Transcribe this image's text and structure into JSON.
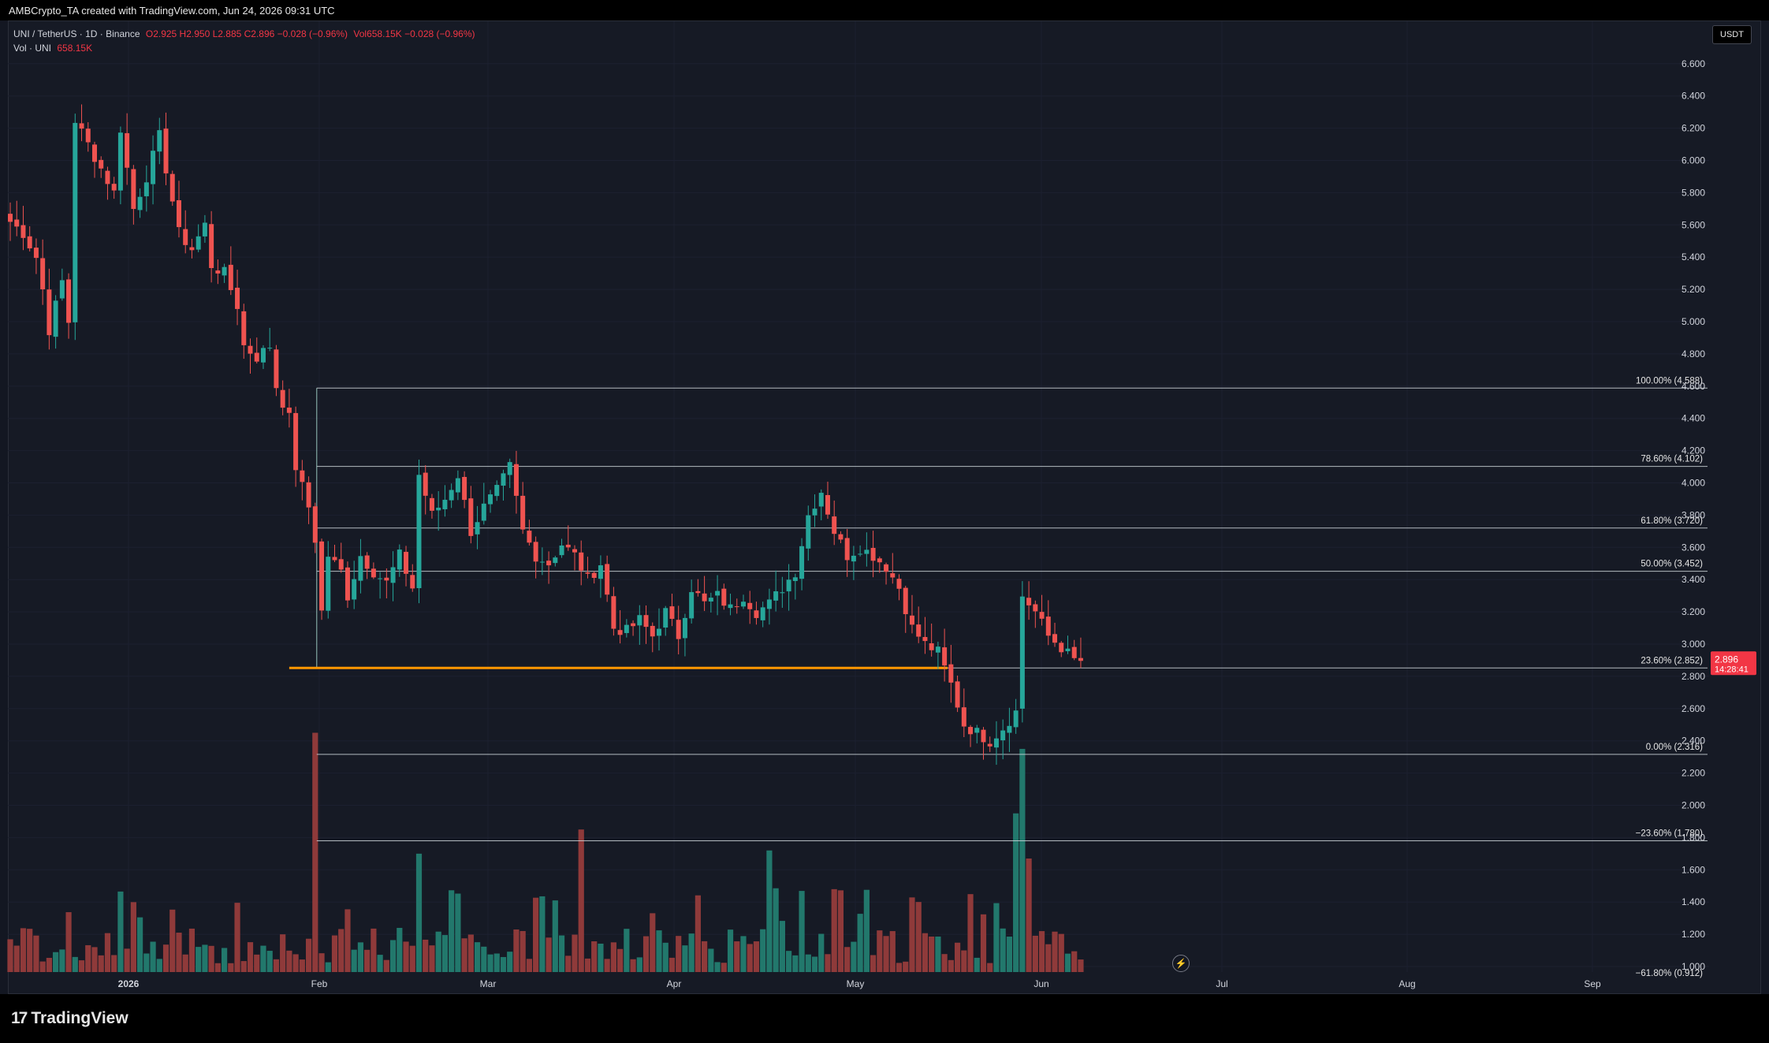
{
  "header": {
    "credit": "AMBCrypto_TA created with TradingView.com, Jun 24, 2026 09:31 UTC"
  },
  "legend": {
    "symbol": "UNI / TetherUS · 1D · Binance",
    "ohlc": "O2.925 H2.950 L2.885 C2.896 −0.028 (−0.96%)",
    "vol_inline": "Vol658.15K −0.028 (−0.96%)",
    "vol_label": "Vol · UNI",
    "vol_value": "658.15K"
  },
  "currency_button": "USDT",
  "brand": "TradingView",
  "last_price": {
    "value": "2.896",
    "countdown": "14:28:41"
  },
  "colors": {
    "up": "#26a69a",
    "down": "#ef5350",
    "volume_up": "#22786c",
    "volume_down": "#8f3a3a",
    "fib": "#cfd8dc",
    "support": "#ff9800",
    "price_tag": "#f23645"
  },
  "chart_data": {
    "type": "candlestick",
    "title": "UNI / TetherUS · 1D · Binance",
    "ylim": [
      0.9,
      6.8
    ],
    "y_ticks": [
      "6.600",
      "6.400",
      "6.200",
      "6.000",
      "5.800",
      "5.600",
      "5.400",
      "5.200",
      "5.000",
      "4.800",
      "4.600",
      "4.400",
      "4.200",
      "4.000",
      "3.800",
      "3.600",
      "3.400",
      "3.200",
      "3.000",
      "2.800",
      "2.600",
      "2.400",
      "2.200",
      "2.000",
      "1.800",
      "1.600",
      "1.400",
      "1.200",
      "1.000"
    ],
    "x_ticks": [
      "2026",
      "Feb",
      "Mar",
      "Apr",
      "May",
      "Jun",
      "Jul",
      "Aug",
      "Sep"
    ],
    "fib_levels": [
      {
        "label": "100.00% (4.588)",
        "value": 4.588
      },
      {
        "label": "78.60% (4.102)",
        "value": 4.102
      },
      {
        "label": "61.80% (3.720)",
        "value": 3.72
      },
      {
        "label": "50.00% (3.452)",
        "value": 3.452
      },
      {
        "label": "23.60% (2.852)",
        "value": 2.852
      },
      {
        "label": "0.00% (2.316)",
        "value": 2.316
      },
      {
        "label": "−23.60% (1.780)",
        "value": 1.78
      },
      {
        "label": "−61.80% (0.912)",
        "value": 0.912
      }
    ],
    "support_level": 2.852,
    "close_path": [
      [
        0,
        5.62
      ],
      [
        2,
        5.55
      ],
      [
        4,
        5.4
      ],
      [
        5,
        5.2
      ],
      [
        6,
        4.95
      ],
      [
        8,
        5.25
      ],
      [
        9,
        5.0
      ],
      [
        10,
        6.25
      ],
      [
        12,
        6.1
      ],
      [
        14,
        5.95
      ],
      [
        16,
        5.8
      ],
      [
        17,
        6.2
      ],
      [
        19,
        5.7
      ],
      [
        21,
        5.9
      ],
      [
        23,
        6.15
      ],
      [
        25,
        5.75
      ],
      [
        26,
        5.55
      ],
      [
        28,
        5.45
      ],
      [
        30,
        5.6
      ],
      [
        31,
        5.35
      ],
      [
        33,
        5.3
      ],
      [
        35,
        5.1
      ],
      [
        36,
        4.85
      ],
      [
        38,
        4.78
      ],
      [
        40,
        4.85
      ],
      [
        41,
        4.6
      ],
      [
        43,
        4.4
      ],
      [
        44,
        4.1
      ],
      [
        46,
        3.85
      ],
      [
        47,
        3.65
      ],
      [
        48,
        3.2
      ],
      [
        49,
        3.55
      ],
      [
        51,
        3.45
      ],
      [
        52,
        3.3
      ],
      [
        54,
        3.55
      ],
      [
        56,
        3.45
      ],
      [
        58,
        3.38
      ],
      [
        60,
        3.55
      ],
      [
        62,
        3.35
      ],
      [
        63,
        4.05
      ],
      [
        65,
        3.8
      ],
      [
        67,
        3.9
      ],
      [
        69,
        4.05
      ],
      [
        71,
        3.7
      ],
      [
        73,
        3.85
      ],
      [
        75,
        3.95
      ],
      [
        77,
        4.1
      ],
      [
        79,
        3.7
      ],
      [
        81,
        3.55
      ],
      [
        83,
        3.5
      ],
      [
        85,
        3.62
      ],
      [
        87,
        3.55
      ],
      [
        89,
        3.4
      ],
      [
        91,
        3.5
      ],
      [
        93,
        3.1
      ],
      [
        95,
        3.08
      ],
      [
        97,
        3.15
      ],
      [
        99,
        3.05
      ],
      [
        101,
        3.2
      ],
      [
        103,
        3.05
      ],
      [
        105,
        3.35
      ],
      [
        107,
        3.25
      ],
      [
        109,
        3.3
      ],
      [
        111,
        3.22
      ],
      [
        113,
        3.3
      ],
      [
        115,
        3.2
      ],
      [
        117,
        3.25
      ],
      [
        119,
        3.35
      ],
      [
        121,
        3.45
      ],
      [
        123,
        3.8
      ],
      [
        125,
        3.95
      ],
      [
        127,
        3.7
      ],
      [
        129,
        3.55
      ],
      [
        131,
        3.6
      ],
      [
        133,
        3.55
      ],
      [
        135,
        3.48
      ],
      [
        137,
        3.35
      ],
      [
        139,
        3.1
      ],
      [
        141,
        3.0
      ],
      [
        143,
        2.95
      ],
      [
        145,
        2.75
      ],
      [
        147,
        2.5
      ],
      [
        149,
        2.45
      ],
      [
        151,
        2.4
      ],
      [
        153,
        2.48
      ],
      [
        155,
        2.58
      ],
      [
        156,
        3.3
      ],
      [
        158,
        3.2
      ],
      [
        160,
        3.05
      ],
      [
        162,
        2.98
      ],
      [
        164,
        2.9
      ],
      [
        165,
        2.896
      ]
    ],
    "volume_spikes": [
      [
        47,
        2.45
      ],
      [
        63,
        1.7
      ],
      [
        88,
        1.85
      ],
      [
        117,
        1.72
      ],
      [
        155,
        1.95
      ],
      [
        156,
        2.35
      ],
      [
        157,
        1.67
      ]
    ],
    "last_close": 2.896
  }
}
